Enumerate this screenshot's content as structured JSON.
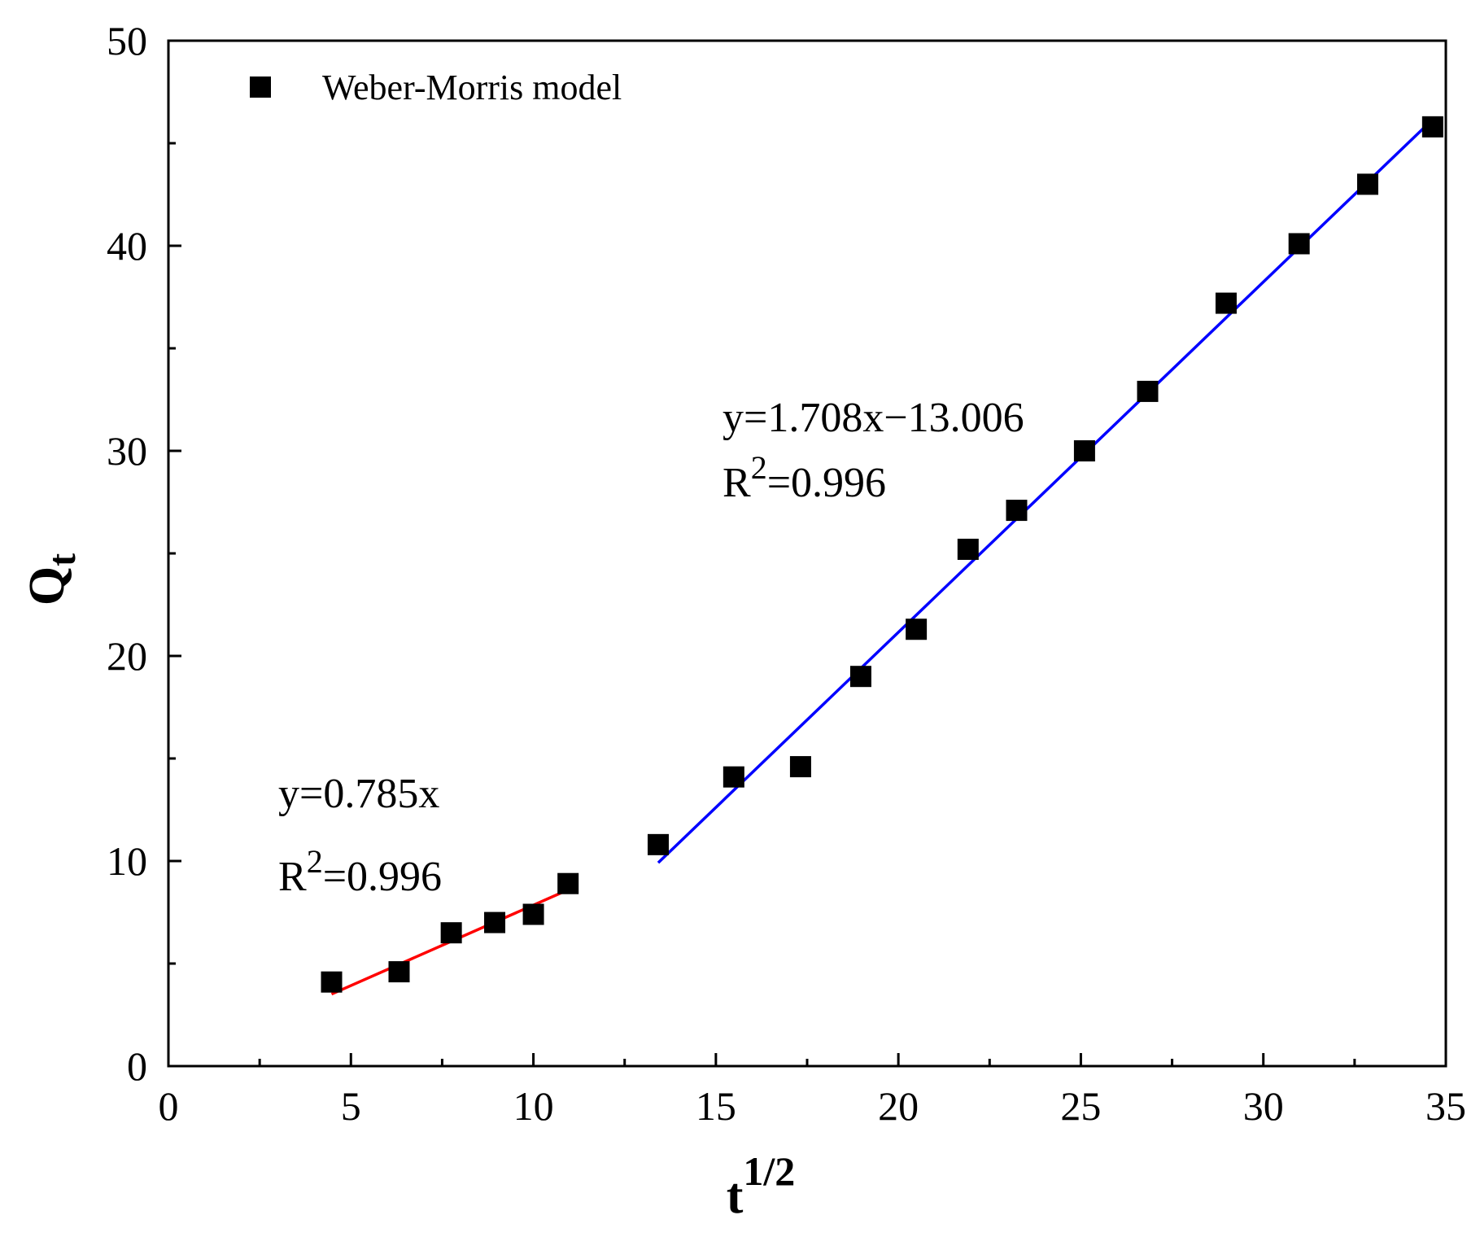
{
  "chart_data": {
    "type": "scatter",
    "title": "",
    "xlabel": "t",
    "xlabel_sup": "1/2",
    "ylabel": "Q",
    "ylabel_sub": "t",
    "xlim": [
      0,
      35
    ],
    "ylim": [
      0,
      50
    ],
    "x_major_ticks": [
      0,
      5,
      10,
      15,
      20,
      25,
      30,
      35
    ],
    "x_minor_ticks": [
      2.5,
      7.5,
      12.5,
      17.5,
      22.5,
      27.5,
      32.5
    ],
    "y_major_ticks": [
      0,
      10,
      20,
      30,
      40,
      50
    ],
    "y_minor_ticks": [
      5,
      15,
      25,
      35,
      45
    ],
    "grid": false,
    "legend": {
      "position": "top-left",
      "label": "Weber-Morris model"
    },
    "series": [
      {
        "name": "Weber-Morris model",
        "marker": "square",
        "color": "#000000",
        "points": [
          [
            4.47,
            4.1
          ],
          [
            6.32,
            4.6
          ],
          [
            7.75,
            6.5
          ],
          [
            8.94,
            7.0
          ],
          [
            10.0,
            7.4
          ],
          [
            10.95,
            8.9
          ],
          [
            13.42,
            10.8
          ],
          [
            15.49,
            14.1
          ],
          [
            17.32,
            14.6
          ],
          [
            18.97,
            19.0
          ],
          [
            20.49,
            21.3
          ],
          [
            21.91,
            25.2
          ],
          [
            23.24,
            27.1
          ],
          [
            25.1,
            30.0
          ],
          [
            26.83,
            32.9
          ],
          [
            28.98,
            37.2
          ],
          [
            30.98,
            40.1
          ],
          [
            32.86,
            43.0
          ],
          [
            34.64,
            45.8
          ]
        ]
      }
    ],
    "fits": [
      {
        "name": "stage-1-fit",
        "color": "#ff0000",
        "slope": 0.785,
        "intercept": 0,
        "x_range": [
          4.47,
          10.95
        ],
        "equation": "y=0.785x",
        "r2_prefix": "R",
        "r2_sup": "2",
        "r2_value": "=0.996"
      },
      {
        "name": "stage-2-fit",
        "color": "#0000ff",
        "slope": 1.708,
        "intercept": -13.006,
        "x_range": [
          13.42,
          34.64
        ],
        "equation": "y=1.708x−13.006",
        "r2_prefix": "R",
        "r2_sup": "2",
        "r2_value": "=0.996"
      }
    ]
  }
}
